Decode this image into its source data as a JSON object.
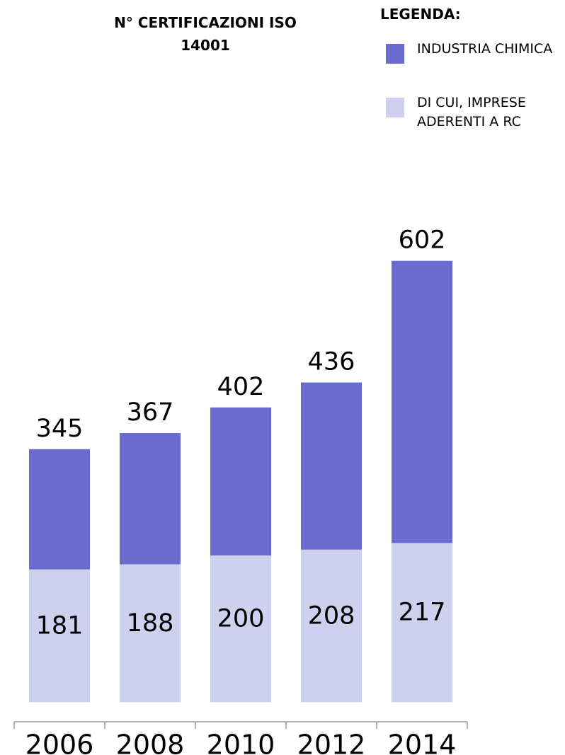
{
  "chart_data": {
    "type": "bar",
    "title": "N° CERTIFICAZIONI ISO 14001",
    "legend_title": "LEGENDA:",
    "categories": [
      "2006",
      "2008",
      "2010",
      "2012",
      "2014"
    ],
    "series": [
      {
        "name": "INDUSTRIA CHIMICA",
        "color": "#6b6bcf",
        "values": [
          345,
          367,
          402,
          436,
          602
        ]
      },
      {
        "name": "DI CUI, IMPRESE ADERENTI A RC",
        "color": "#cfcfee",
        "values": [
          181,
          188,
          200,
          208,
          217
        ]
      }
    ],
    "ylim": [
      -25,
      620
    ],
    "legend": "top-right"
  }
}
